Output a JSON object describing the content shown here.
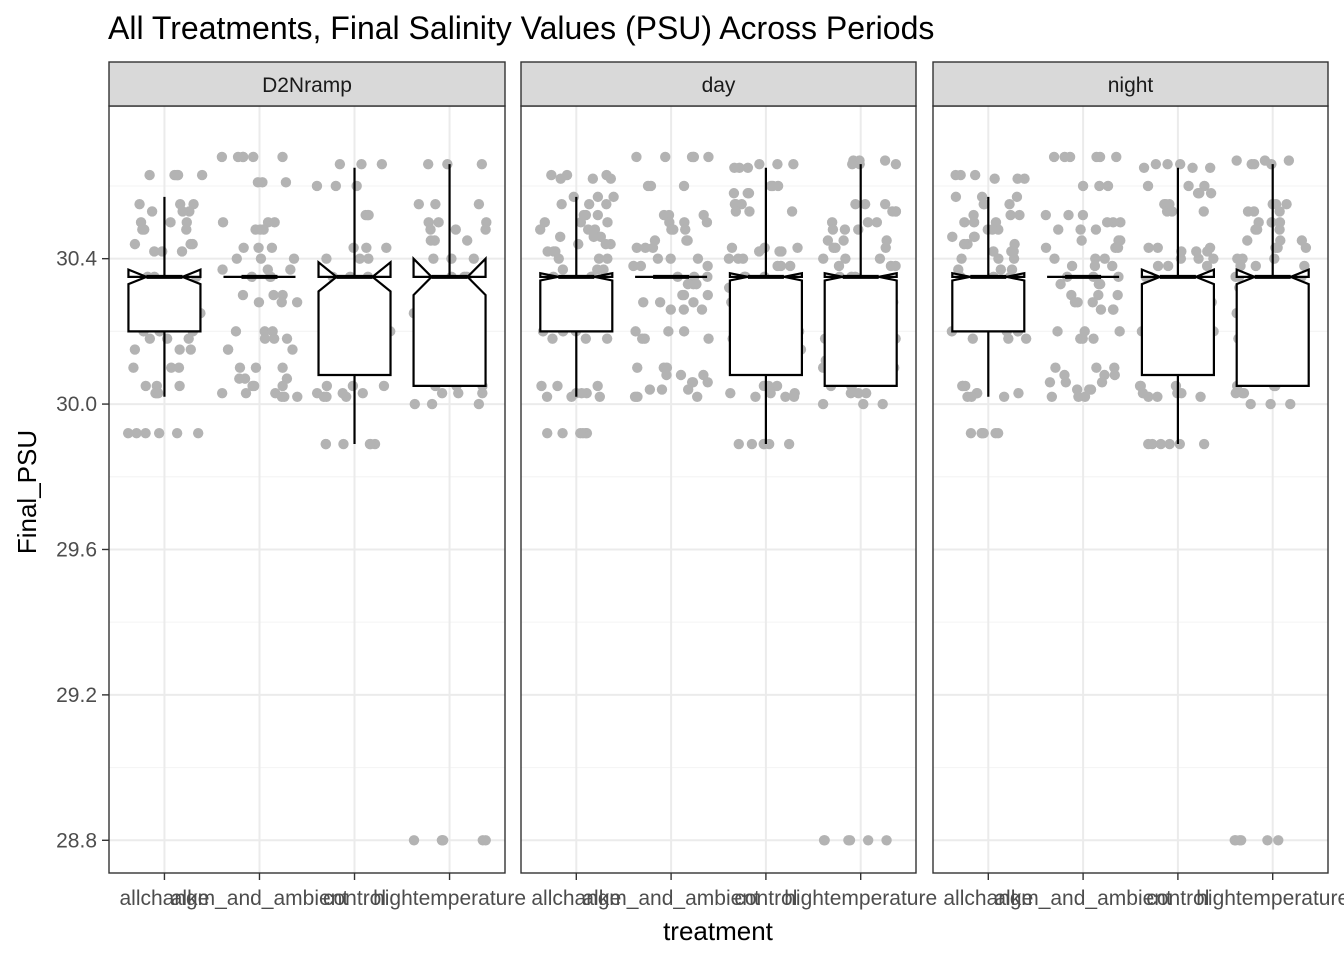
{
  "chart_data": {
    "type": "boxplot",
    "title": "All Treatments, Final Salinity Values (PSU) Across Periods",
    "xlabel": "treatment",
    "ylabel": "Final_PSU",
    "categories": [
      "allchange",
      "alkm_and_ambient",
      "control",
      "hightemperature"
    ],
    "y_ticks": [
      28.8,
      29.2,
      29.6,
      30.0,
      30.4
    ],
    "ylim": [
      28.71,
      30.82
    ],
    "grid": true,
    "facets": [
      {
        "label": "D2Nramp",
        "boxes": [
          {
            "category": "allchange",
            "whisker_low": 30.02,
            "q1": 30.2,
            "median": 30.35,
            "q3": 30.35,
            "whisker_high": 30.57,
            "notch_low": 30.33,
            "notch_high": 30.37
          },
          {
            "category": "alkm_and_ambient",
            "whisker_low": 30.35,
            "q1": 30.35,
            "median": 30.35,
            "q3": 30.35,
            "whisker_high": 30.35,
            "notch_low": 30.35,
            "notch_high": 30.35
          },
          {
            "category": "control",
            "whisker_low": 29.89,
            "q1": 30.08,
            "median": 30.35,
            "q3": 30.35,
            "whisker_high": 30.65,
            "notch_low": 30.31,
            "notch_high": 30.39
          },
          {
            "category": "hightemperature",
            "whisker_low": 30.05,
            "q1": 30.05,
            "median": 30.35,
            "q3": 30.35,
            "whisker_high": 30.66,
            "notch_low": 30.3,
            "notch_high": 30.4
          }
        ],
        "points": [
          {
            "category": "allchange",
            "y_values": [
              30.63,
              30.63,
              30.55,
              30.53,
              30.5,
              30.48,
              30.44,
              30.42,
              30.35,
              30.33,
              30.3,
              30.28,
              30.25,
              30.2,
              30.18,
              30.15,
              30.1,
              30.05,
              30.03,
              29.92,
              29.92
            ]
          },
          {
            "category": "alkm_and_ambient",
            "y_values": [
              30.68,
              30.68,
              30.61,
              30.5,
              30.48,
              30.43,
              30.4,
              30.37,
              30.35,
              30.3,
              30.28,
              30.2,
              30.18,
              30.15,
              30.1,
              30.07,
              30.05,
              30.03,
              30.02
            ]
          },
          {
            "category": "control",
            "y_values": [
              30.66,
              30.6,
              30.52,
              30.43,
              30.4,
              30.35,
              30.3,
              30.25,
              30.2,
              30.15,
              30.1,
              30.05,
              30.03,
              30.02,
              29.89,
              29.89
            ]
          },
          {
            "category": "hightemperature",
            "y_values": [
              30.66,
              30.55,
              30.5,
              30.48,
              30.45,
              30.4,
              30.35,
              30.3,
              30.25,
              30.2,
              30.15,
              30.1,
              30.05,
              30.03,
              30.0,
              28.8,
              28.8
            ]
          }
        ]
      },
      {
        "label": "day",
        "boxes": [
          {
            "category": "allchange",
            "whisker_low": 30.02,
            "q1": 30.2,
            "median": 30.35,
            "q3": 30.35,
            "whisker_high": 30.57,
            "notch_low": 30.34,
            "notch_high": 30.36
          },
          {
            "category": "alkm_and_ambient",
            "whisker_low": 30.35,
            "q1": 30.35,
            "median": 30.35,
            "q3": 30.35,
            "whisker_high": 30.35,
            "notch_low": 30.35,
            "notch_high": 30.35
          },
          {
            "category": "control",
            "whisker_low": 29.89,
            "q1": 30.08,
            "median": 30.35,
            "q3": 30.35,
            "whisker_high": 30.65,
            "notch_low": 30.34,
            "notch_high": 30.36
          },
          {
            "category": "hightemperature",
            "whisker_low": 30.05,
            "q1": 30.05,
            "median": 30.35,
            "q3": 30.35,
            "whisker_high": 30.66,
            "notch_low": 30.34,
            "notch_high": 30.36
          }
        ],
        "points": [
          {
            "category": "allchange",
            "y_values": [
              30.63,
              30.62,
              30.57,
              30.55,
              30.52,
              30.5,
              30.48,
              30.46,
              30.44,
              30.42,
              30.4,
              30.37,
              30.35,
              30.3,
              30.28,
              30.26,
              30.2,
              30.18,
              30.05,
              30.03,
              30.02,
              29.92,
              29.92
            ]
          },
          {
            "category": "alkm_and_ambient",
            "y_values": [
              30.68,
              30.68,
              30.6,
              30.52,
              30.5,
              30.48,
              30.45,
              30.43,
              30.4,
              30.38,
              30.35,
              30.33,
              30.3,
              30.28,
              30.26,
              30.2,
              30.18,
              30.1,
              30.08,
              30.06,
              30.04,
              30.02
            ]
          },
          {
            "category": "control",
            "y_values": [
              30.66,
              30.65,
              30.6,
              30.58,
              30.55,
              30.53,
              30.43,
              30.42,
              30.4,
              30.38,
              30.35,
              30.32,
              30.3,
              30.28,
              30.25,
              30.2,
              30.18,
              30.15,
              30.12,
              30.1,
              30.05,
              30.03,
              30.02,
              29.89,
              29.89
            ]
          },
          {
            "category": "hightemperature",
            "y_values": [
              30.67,
              30.66,
              30.55,
              30.53,
              30.5,
              30.48,
              30.45,
              30.43,
              30.4,
              30.38,
              30.35,
              30.32,
              30.3,
              30.28,
              30.25,
              30.2,
              30.18,
              30.15,
              30.12,
              30.1,
              30.05,
              30.03,
              30.0,
              28.8,
              28.8
            ]
          }
        ]
      },
      {
        "label": "night",
        "boxes": [
          {
            "category": "allchange",
            "whisker_low": 30.02,
            "q1": 30.2,
            "median": 30.35,
            "q3": 30.35,
            "whisker_high": 30.57,
            "notch_low": 30.34,
            "notch_high": 30.36
          },
          {
            "category": "alkm_and_ambient",
            "whisker_low": 30.35,
            "q1": 30.35,
            "median": 30.35,
            "q3": 30.35,
            "whisker_high": 30.35,
            "notch_low": 30.35,
            "notch_high": 30.35
          },
          {
            "category": "control",
            "whisker_low": 29.89,
            "q1": 30.08,
            "median": 30.35,
            "q3": 30.35,
            "whisker_high": 30.65,
            "notch_low": 30.33,
            "notch_high": 30.37
          },
          {
            "category": "hightemperature",
            "whisker_low": 30.05,
            "q1": 30.05,
            "median": 30.35,
            "q3": 30.35,
            "whisker_high": 30.66,
            "notch_low": 30.33,
            "notch_high": 30.37
          }
        ],
        "points": [
          {
            "category": "allchange",
            "y_values": [
              30.63,
              30.62,
              30.57,
              30.55,
              30.52,
              30.5,
              30.48,
              30.46,
              30.44,
              30.42,
              30.4,
              30.37,
              30.35,
              30.3,
              30.28,
              30.26,
              30.2,
              30.18,
              30.05,
              30.03,
              30.02,
              29.92,
              29.92
            ]
          },
          {
            "category": "alkm_and_ambient",
            "y_values": [
              30.68,
              30.68,
              30.6,
              30.52,
              30.5,
              30.48,
              30.45,
              30.43,
              30.4,
              30.38,
              30.35,
              30.33,
              30.3,
              30.28,
              30.26,
              30.2,
              30.18,
              30.1,
              30.08,
              30.06,
              30.04,
              30.02
            ]
          },
          {
            "category": "control",
            "y_values": [
              30.66,
              30.65,
              30.6,
              30.58,
              30.55,
              30.53,
              30.43,
              30.42,
              30.4,
              30.38,
              30.35,
              30.32,
              30.3,
              30.28,
              30.25,
              30.2,
              30.18,
              30.15,
              30.12,
              30.1,
              30.05,
              30.03,
              30.02,
              29.89,
              29.89
            ]
          },
          {
            "category": "hightemperature",
            "y_values": [
              30.67,
              30.66,
              30.55,
              30.53,
              30.5,
              30.48,
              30.45,
              30.43,
              30.4,
              30.38,
              30.35,
              30.32,
              30.3,
              30.28,
              30.25,
              30.2,
              30.18,
              30.15,
              30.12,
              30.1,
              30.05,
              30.03,
              30.0,
              28.8,
              28.8
            ]
          }
        ]
      }
    ],
    "colors": {
      "points": "#b3b3b3",
      "box_fill": "#ffffff",
      "box_stroke": "#000000",
      "strip_fill": "#d9d9d9",
      "grid_major": "#ebebeb",
      "grid_minor": "#f5f5f5",
      "axis_text": "#4d4d4d"
    }
  }
}
